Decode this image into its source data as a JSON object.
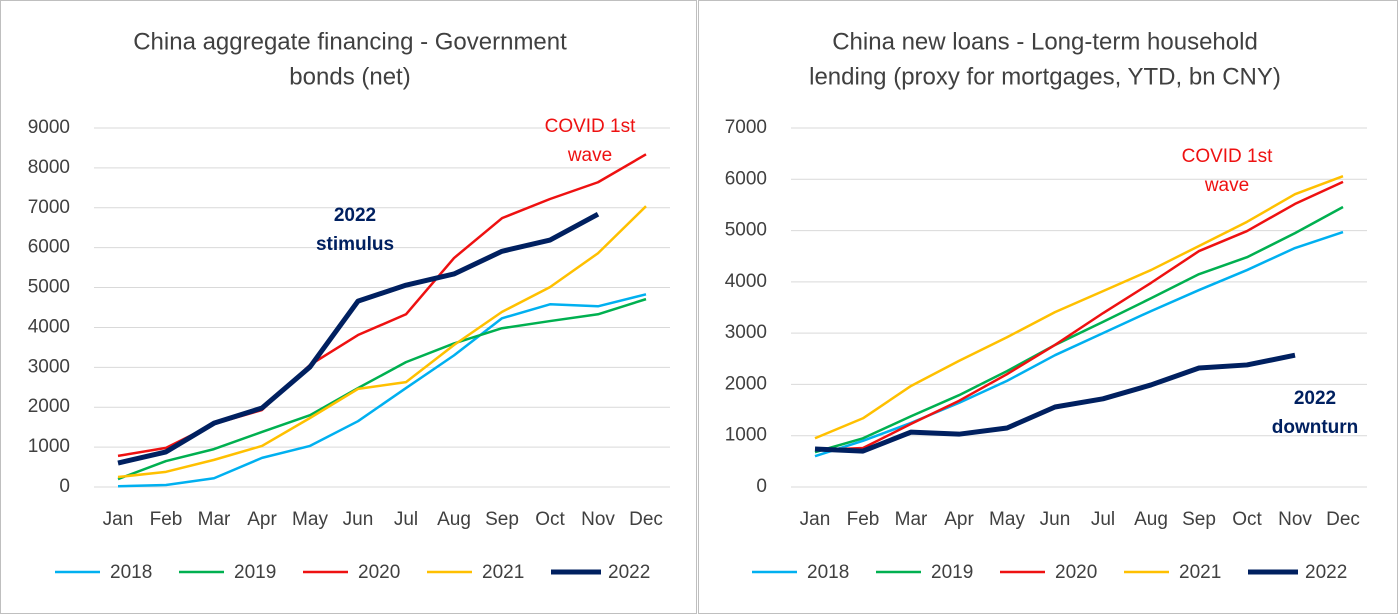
{
  "chart_data": [
    {
      "type": "line",
      "title": [
        "China aggregate financing - Government",
        "bonds (net)"
      ],
      "categories": [
        "Jan",
        "Feb",
        "Mar",
        "Apr",
        "May",
        "Jun",
        "Jul",
        "Aug",
        "Sep",
        "Oct",
        "Nov",
        "Dec"
      ],
      "ylim": [
        0,
        9000
      ],
      "yticks": [
        0,
        1000,
        2000,
        3000,
        4000,
        5000,
        6000,
        7000,
        8000,
        9000
      ],
      "grid": true,
      "series": [
        {
          "name": "2018",
          "color": "#00b0f0",
          "values": [
            20,
            50,
            220,
            730,
            1030,
            1650,
            2480,
            3300,
            4230,
            4580,
            4530,
            4830
          ]
        },
        {
          "name": "2019",
          "color": "#00b050",
          "values": [
            200,
            650,
            950,
            1380,
            1800,
            2480,
            3130,
            3600,
            3980,
            4160,
            4330,
            4710
          ]
        },
        {
          "name": "2020",
          "color": "#ee1111",
          "values": [
            780,
            980,
            1580,
            1930,
            3060,
            3810,
            4330,
            5740,
            6740,
            7220,
            7640,
            8340
          ]
        },
        {
          "name": "2021",
          "color": "#ffc000",
          "values": [
            250,
            380,
            680,
            1030,
            1730,
            2460,
            2630,
            3560,
            4390,
            5010,
            5860,
            7040
          ]
        },
        {
          "name": "2022",
          "color": "#002060",
          "values": [
            600,
            880,
            1600,
            1980,
            3010,
            4660,
            5060,
            5340,
            5910,
            6190,
            6840,
            null
          ]
        }
      ],
      "annotations": [
        {
          "text": [
            "COVID 1st",
            "wave"
          ],
          "color": "#ee1111",
          "bold": false
        },
        {
          "text": [
            "2022",
            "stimulus"
          ],
          "color": "#002060",
          "bold": true
        }
      ]
    },
    {
      "type": "line",
      "title": [
        "China new loans - Long-term household",
        "lending (proxy for mortgages, YTD, bn CNY)"
      ],
      "categories": [
        "Jan",
        "Feb",
        "Mar",
        "Apr",
        "May",
        "Jun",
        "Jul",
        "Aug",
        "Sep",
        "Oct",
        "Nov",
        "Dec"
      ],
      "ylim": [
        0,
        7000
      ],
      "yticks": [
        0,
        1000,
        2000,
        3000,
        4000,
        5000,
        6000,
        7000
      ],
      "grid": true,
      "series": [
        {
          "name": "2018",
          "color": "#00b0f0",
          "values": [
            600,
            900,
            1250,
            1640,
            2070,
            2570,
            3000,
            3430,
            3840,
            4230,
            4660,
            4970
          ]
        },
        {
          "name": "2019",
          "color": "#00b050",
          "values": [
            680,
            950,
            1380,
            1790,
            2260,
            2770,
            3220,
            3680,
            4150,
            4480,
            4950,
            5460
          ]
        },
        {
          "name": "2020",
          "color": "#ee1111",
          "values": [
            720,
            760,
            1230,
            1680,
            2200,
            2770,
            3390,
            3980,
            4600,
            4990,
            5520,
            5950
          ]
        },
        {
          "name": "2021",
          "color": "#ffc000",
          "values": [
            950,
            1340,
            1970,
            2460,
            2920,
            3410,
            3820,
            4230,
            4700,
            5170,
            5710,
            6060
          ]
        },
        {
          "name": "2022",
          "color": "#002060",
          "values": [
            740,
            700,
            1070,
            1030,
            1150,
            1560,
            1720,
            1990,
            2320,
            2380,
            2570,
            null
          ]
        }
      ],
      "annotations": [
        {
          "text": [
            "COVID 1st",
            "wave"
          ],
          "color": "#ee1111",
          "bold": false
        },
        {
          "text": [
            "2022",
            "downturn"
          ],
          "color": "#002060",
          "bold": true
        }
      ]
    }
  ]
}
